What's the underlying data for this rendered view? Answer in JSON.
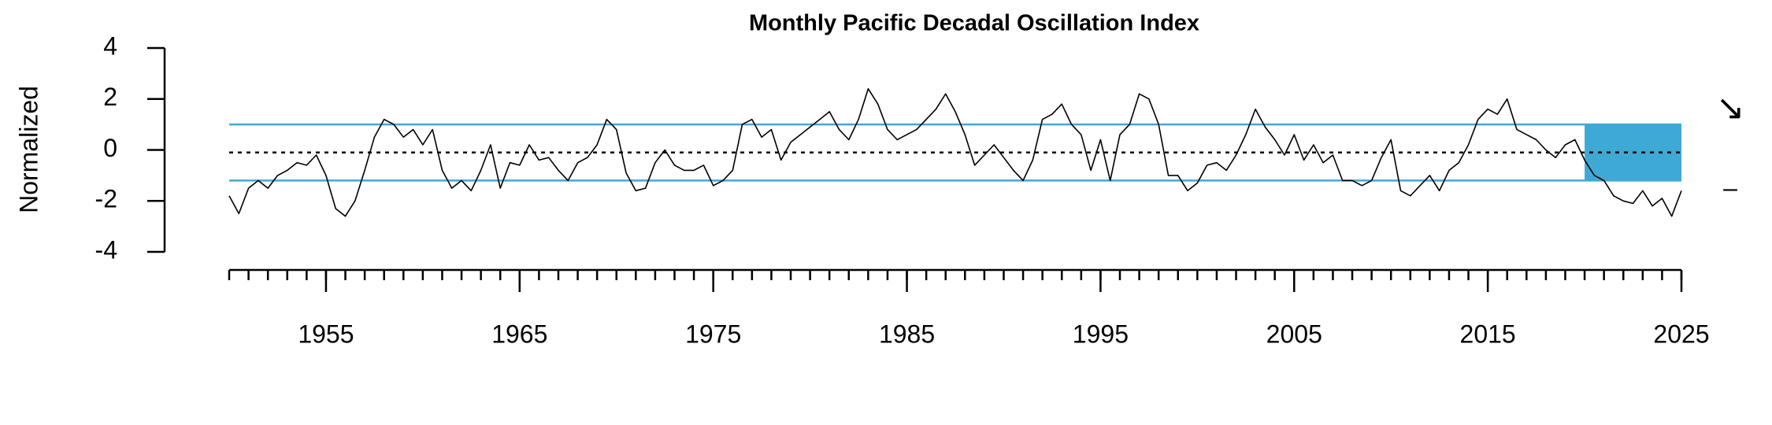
{
  "chart_data": {
    "type": "line",
    "title": "Monthly Pacific Decadal Oscillation Index",
    "y_label": "Normalized",
    "trend_symbol": "↘",
    "level_symbol": "–",
    "xlim": [
      1950,
      2025
    ],
    "ylim": [
      -4,
      4
    ],
    "yticks": [
      4,
      2,
      0,
      -2,
      -4
    ],
    "xticks": [
      1955,
      1965,
      1975,
      1985,
      1995,
      2005,
      2015,
      2025
    ],
    "xminorticks": [
      1950,
      1951,
      1952,
      1953,
      1954,
      1955,
      1956,
      1957,
      1958,
      1959,
      1960,
      1961,
      1962,
      1963,
      1964,
      1965,
      1966,
      1967,
      1968,
      1969,
      1970,
      1971,
      1972,
      1973,
      1974,
      1975,
      1976,
      1977,
      1978,
      1979,
      1980,
      1981,
      1982,
      1983,
      1984,
      1985,
      1986,
      1987,
      1988,
      1989,
      1990,
      1991,
      1992,
      1993,
      1994,
      1995,
      1996,
      1997,
      1998,
      1999,
      2000,
      2001,
      2002,
      2003,
      2004,
      2005,
      2006,
      2007,
      2008,
      2009,
      2010,
      2011,
      2012,
      2013,
      2014,
      2015,
      2016,
      2017,
      2018,
      2019,
      2020,
      2021,
      2022,
      2023,
      2024,
      2025
    ],
    "hlines": [
      {
        "value": 1.0,
        "color": "#3fa9d5"
      },
      {
        "value": -1.2,
        "color": "#3fa9d5"
      }
    ],
    "mean": -0.1,
    "highlight": {
      "xlim": [
        2020,
        2025
      ],
      "ylim": [
        -1.2,
        1.0
      ],
      "color": "#3fa9d5"
    },
    "series": [
      {
        "color": "#000000",
        "x": [
          1950,
          1950.5,
          1951,
          1951.5,
          1952,
          1952.5,
          1953,
          1953.5,
          1954,
          1954.5,
          1955,
          1955.5,
          1956,
          1956.5,
          1957,
          1957.5,
          1958,
          1958.5,
          1959,
          1959.5,
          1960,
          1960.5,
          1961,
          1961.5,
          1962,
          1962.5,
          1963,
          1963.5,
          1964,
          1964.5,
          1965,
          1965.5,
          1966,
          1966.5,
          1967,
          1967.5,
          1968,
          1968.5,
          1969,
          1969.5,
          1970,
          1970.5,
          1971,
          1971.5,
          1972,
          1972.5,
          1973,
          1973.5,
          1974,
          1974.5,
          1975,
          1975.5,
          1976,
          1976.5,
          1977,
          1977.5,
          1978,
          1978.5,
          1979,
          1979.5,
          1980,
          1980.5,
          1981,
          1981.5,
          1982,
          1982.5,
          1983,
          1983.5,
          1984,
          1984.5,
          1985,
          1985.5,
          1986,
          1986.5,
          1987,
          1987.5,
          1988,
          1988.5,
          1989,
          1989.5,
          1990,
          1990.5,
          1991,
          1991.5,
          1992,
          1992.5,
          1993,
          1993.5,
          1994,
          1994.5,
          1995,
          1995.5,
          1996,
          1996.5,
          1997,
          1997.5,
          1998,
          1998.5,
          1999,
          1999.5,
          2000,
          2000.5,
          2001,
          2001.5,
          2002,
          2002.5,
          2003,
          2003.5,
          2004,
          2004.5,
          2005,
          2005.5,
          2006,
          2006.5,
          2007,
          2007.5,
          2008,
          2008.5,
          2009,
          2009.5,
          2010,
          2010.5,
          2011,
          2011.5,
          2012,
          2012.5,
          2013,
          2013.5,
          2014,
          2014.5,
          2015,
          2015.5,
          2016,
          2016.5,
          2017,
          2017.5,
          2018,
          2018.5,
          2019,
          2019.5,
          2020,
          2020.5,
          2021,
          2021.5,
          2022,
          2022.5,
          2023,
          2023.5,
          2024,
          2024.5,
          2025
        ],
        "values": [
          -1.8,
          -2.5,
          -1.5,
          -1.2,
          -1.5,
          -1.0,
          -0.8,
          -0.5,
          -0.6,
          -0.2,
          -1.0,
          -2.3,
          -2.6,
          -2.0,
          -0.8,
          0.5,
          1.2,
          1.0,
          0.5,
          0.8,
          0.2,
          0.8,
          -0.8,
          -1.5,
          -1.2,
          -1.6,
          -0.8,
          0.2,
          -1.5,
          -0.5,
          -0.6,
          0.2,
          -0.4,
          -0.3,
          -0.8,
          -1.2,
          -0.5,
          -0.3,
          0.2,
          1.2,
          0.8,
          -0.9,
          -1.6,
          -1.5,
          -0.5,
          0.0,
          -0.6,
          -0.8,
          -0.8,
          -0.6,
          -1.4,
          -1.2,
          -0.8,
          1.0,
          1.2,
          0.5,
          0.8,
          -0.4,
          0.3,
          0.6,
          0.9,
          1.2,
          1.5,
          0.8,
          0.4,
          1.2,
          2.4,
          1.8,
          0.8,
          0.4,
          0.6,
          0.8,
          1.2,
          1.6,
          2.2,
          1.5,
          0.6,
          -0.6,
          -0.2,
          0.2,
          -0.3,
          -0.8,
          -1.2,
          -0.4,
          1.2,
          1.4,
          1.8,
          1.0,
          0.6,
          -0.8,
          0.4,
          -1.2,
          0.6,
          1.0,
          2.2,
          2.0,
          1.0,
          -1.0,
          -1.0,
          -1.6,
          -1.3,
          -0.6,
          -0.5,
          -0.8,
          -0.2,
          0.6,
          1.6,
          0.9,
          0.4,
          -0.2,
          0.6,
          -0.4,
          0.2,
          -0.5,
          -0.2,
          -1.2,
          -1.2,
          -1.4,
          -1.2,
          -0.3,
          0.4,
          -1.6,
          -1.8,
          -1.4,
          -1.0,
          -1.6,
          -0.8,
          -0.5,
          0.2,
          1.2,
          1.6,
          1.4,
          2.0,
          0.8,
          0.6,
          0.4,
          0.0,
          -0.3,
          0.2,
          0.4,
          -0.4,
          -1.0,
          -1.2,
          -1.8,
          -2.0,
          -2.1,
          -1.6,
          -2.2,
          -1.9,
          -2.6,
          -1.6
        ]
      }
    ]
  }
}
